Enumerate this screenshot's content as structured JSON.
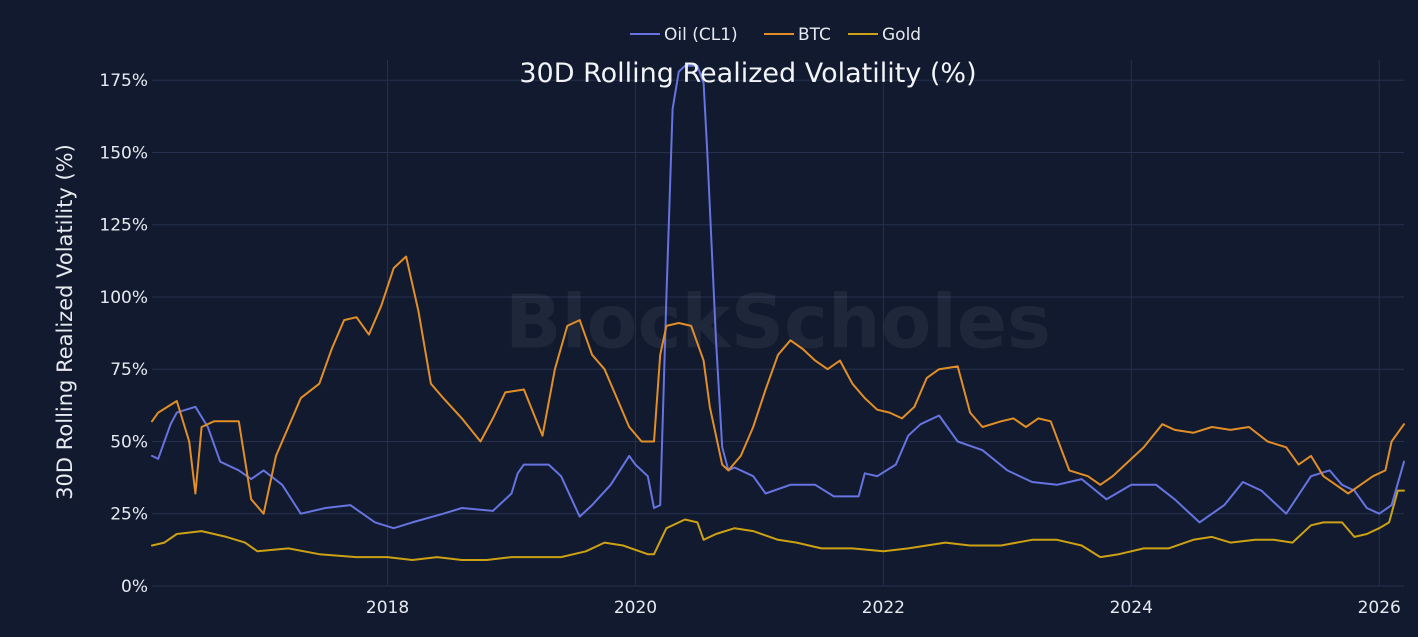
{
  "chart_data": {
    "type": "line",
    "title": "30D Rolling Realized Volatility (%)",
    "xlabel": "",
    "ylabel": "30D Rolling Realized Volatility (%)",
    "watermark": "BlockScholes",
    "ylim": [
      0,
      182
    ],
    "xlim": [
      2016.1,
      2026.2
    ],
    "yticks": [
      0,
      25,
      50,
      75,
      100,
      125,
      150,
      175
    ],
    "ytick_labels": [
      "0%",
      "25%",
      "50%",
      "75%",
      "100%",
      "125%",
      "150%",
      "175%"
    ],
    "xticks": [
      2018,
      2020,
      2022,
      2024,
      2026
    ],
    "xtick_labels": [
      "2018",
      "2020",
      "2022",
      "2024",
      "2026"
    ],
    "grid": true,
    "legend_position": "top-center",
    "colors": {
      "background": "#111a2e",
      "grid": "#25314d",
      "text": "#e6e9f0"
    },
    "series": [
      {
        "name": "Oil (CL1)",
        "color": "#6673e0",
        "x": [
          2016.1,
          2016.15,
          2016.25,
          2016.3,
          2016.45,
          2016.55,
          2016.65,
          2016.8,
          2016.9,
          2017.0,
          2017.15,
          2017.3,
          2017.5,
          2017.7,
          2017.9,
          2018.05,
          2018.2,
          2018.45,
          2018.6,
          2018.85,
          2019.0,
          2019.05,
          2019.1,
          2019.3,
          2019.4,
          2019.55,
          2019.65,
          2019.8,
          2019.95,
          2020.0,
          2020.1,
          2020.15,
          2020.2,
          2020.25,
          2020.3,
          2020.35,
          2020.4,
          2020.5,
          2020.55,
          2020.58,
          2020.65,
          2020.7,
          2020.75,
          2020.8,
          2020.95,
          2021.05,
          2021.25,
          2021.45,
          2021.6,
          2021.8,
          2021.85,
          2021.95,
          2022.1,
          2022.2,
          2022.3,
          2022.45,
          2022.6,
          2022.8,
          2023.0,
          2023.2,
          2023.4,
          2023.6,
          2023.8,
          2024.0,
          2024.2,
          2024.35,
          2024.55,
          2024.75,
          2024.9,
          2025.05,
          2025.25,
          2025.45,
          2025.6,
          2025.7,
          2025.8,
          2025.9,
          2026.0,
          2026.1,
          2026.2
        ],
        "values": [
          45,
          44,
          56,
          60,
          62,
          55,
          43,
          40,
          37,
          40,
          35,
          25,
          27,
          28,
          22,
          20,
          22,
          25,
          27,
          26,
          32,
          39,
          42,
          42,
          38,
          24,
          28,
          35,
          45,
          42,
          38,
          27,
          28,
          100,
          165,
          178,
          180,
          180,
          174,
          150,
          85,
          48,
          40,
          41,
          38,
          32,
          35,
          35,
          31,
          31,
          39,
          38,
          42,
          52,
          56,
          59,
          50,
          47,
          40,
          36,
          35,
          37,
          30,
          35,
          35,
          30,
          22,
          28,
          36,
          33,
          25,
          38,
          40,
          35,
          33,
          27,
          25,
          28,
          43
        ]
      },
      {
        "name": "BTC",
        "color": "#e28e27",
        "x": [
          2016.1,
          2016.15,
          2016.3,
          2016.4,
          2016.45,
          2016.5,
          2016.6,
          2016.8,
          2016.9,
          2017.0,
          2017.1,
          2017.2,
          2017.3,
          2017.45,
          2017.55,
          2017.65,
          2017.75,
          2017.85,
          2017.95,
          2018.05,
          2018.15,
          2018.25,
          2018.35,
          2018.45,
          2018.6,
          2018.75,
          2018.85,
          2018.95,
          2019.1,
          2019.25,
          2019.35,
          2019.45,
          2019.55,
          2019.65,
          2019.75,
          2019.85,
          2019.95,
          2020.05,
          2020.15,
          2020.2,
          2020.25,
          2020.35,
          2020.45,
          2020.55,
          2020.6,
          2020.7,
          2020.75,
          2020.85,
          2020.95,
          2021.05,
          2021.15,
          2021.25,
          2021.35,
          2021.45,
          2021.55,
          2021.65,
          2021.75,
          2021.85,
          2021.95,
          2022.05,
          2022.15,
          2022.25,
          2022.35,
          2022.45,
          2022.6,
          2022.7,
          2022.8,
          2022.95,
          2023.05,
          2023.15,
          2023.25,
          2023.35,
          2023.5,
          2023.65,
          2023.75,
          2023.85,
          2023.95,
          2024.1,
          2024.25,
          2024.35,
          2024.5,
          2024.65,
          2024.8,
          2024.95,
          2025.1,
          2025.25,
          2025.35,
          2025.45,
          2025.55,
          2025.65,
          2025.75,
          2025.85,
          2025.95,
          2026.05,
          2026.1,
          2026.2
        ],
        "values": [
          57,
          60,
          64,
          50,
          32,
          55,
          57,
          57,
          30,
          25,
          45,
          55,
          65,
          70,
          82,
          92,
          93,
          87,
          97,
          110,
          114,
          95,
          70,
          65,
          58,
          50,
          58,
          67,
          68,
          52,
          75,
          90,
          92,
          80,
          75,
          65,
          55,
          50,
          50,
          80,
          90,
          91,
          90,
          78,
          62,
          42,
          40,
          45,
          55,
          68,
          80,
          85,
          82,
          78,
          75,
          78,
          70,
          65,
          61,
          60,
          58,
          62,
          72,
          75,
          76,
          60,
          55,
          57,
          58,
          55,
          58,
          57,
          40,
          38,
          35,
          38,
          42,
          48,
          56,
          54,
          53,
          55,
          54,
          55,
          50,
          48,
          42,
          45,
          38,
          35,
          32,
          35,
          38,
          40,
          50,
          56
        ]
      },
      {
        "name": "Gold",
        "color": "#cca114",
        "x": [
          2016.1,
          2016.2,
          2016.3,
          2016.5,
          2016.7,
          2016.85,
          2016.95,
          2017.2,
          2017.45,
          2017.75,
          2018.0,
          2018.2,
          2018.4,
          2018.6,
          2018.8,
          2019.0,
          2019.2,
          2019.4,
          2019.6,
          2019.75,
          2019.9,
          2020.1,
          2020.15,
          2020.25,
          2020.4,
          2020.5,
          2020.55,
          2020.65,
          2020.8,
          2020.95,
          2021.15,
          2021.3,
          2021.5,
          2021.75,
          2022.0,
          2022.2,
          2022.35,
          2022.5,
          2022.7,
          2022.95,
          2023.2,
          2023.4,
          2023.6,
          2023.75,
          2023.9,
          2024.1,
          2024.3,
          2024.5,
          2024.65,
          2024.8,
          2025.0,
          2025.15,
          2025.3,
          2025.45,
          2025.55,
          2025.7,
          2025.8,
          2025.9,
          2026.0,
          2026.08,
          2026.15,
          2026.2
        ],
        "values": [
          14,
          15,
          18,
          19,
          17,
          15,
          12,
          13,
          11,
          10,
          10,
          9,
          10,
          9,
          9,
          10,
          10,
          10,
          12,
          15,
          14,
          11,
          11,
          20,
          23,
          22,
          16,
          18,
          20,
          19,
          16,
          15,
          13,
          13,
          12,
          13,
          14,
          15,
          14,
          14,
          16,
          16,
          14,
          10,
          11,
          13,
          13,
          16,
          17,
          15,
          16,
          16,
          15,
          21,
          22,
          22,
          17,
          18,
          20,
          22,
          33,
          33
        ]
      }
    ]
  }
}
